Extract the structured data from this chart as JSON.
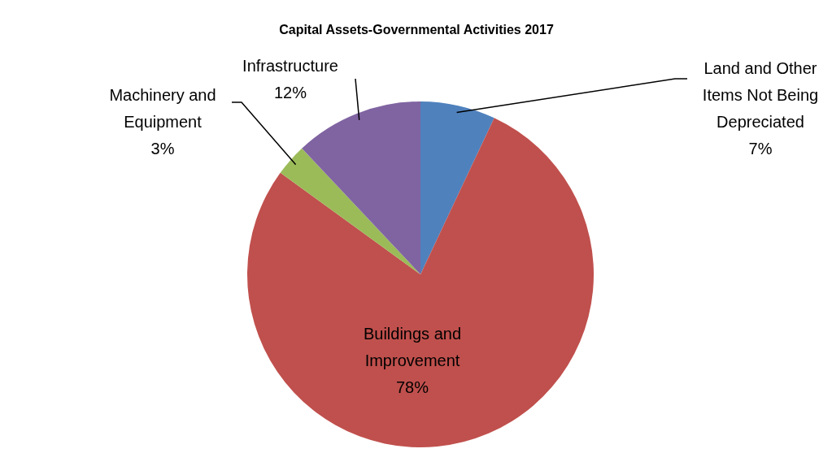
{
  "chart_data": {
    "type": "pie",
    "title": "Capital Assets-Governmental Activities 2017",
    "categories": [
      "Land and Other Items Not Being Depreciated",
      "Buildings and Improvement",
      "Machinery and Equipment",
      "Infrastructure"
    ],
    "values": [
      7,
      78,
      3,
      12
    ],
    "value_labels": [
      "7%",
      "78%",
      "3%",
      "12%"
    ],
    "colors": [
      "#4f81bd",
      "#c0504d",
      "#9bbb59",
      "#8064a2"
    ],
    "legend": false
  }
}
